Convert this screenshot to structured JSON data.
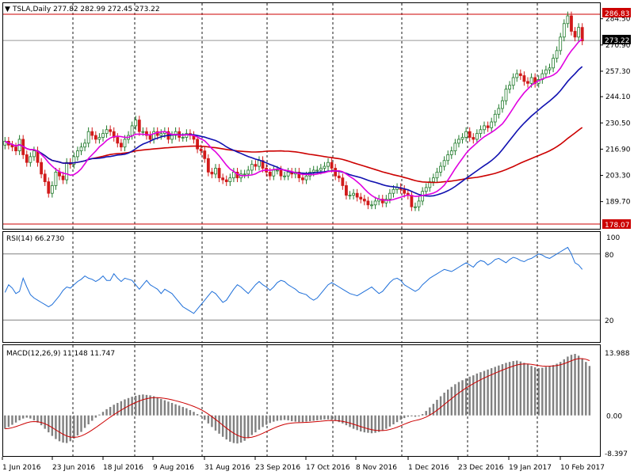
{
  "chart_data": [
    {
      "type": "candlestick",
      "symbol": "TSLA",
      "timeframe": "Daily",
      "header_text": "TSLA,Daily  277.82 282.99 272.45 273.22",
      "ohlc_last": {
        "open": 277.82,
        "high": 282.99,
        "low": 272.45,
        "close": 273.22
      },
      "ylim": [
        178.07,
        286.83
      ],
      "price_ticks": [
        284.5,
        270.9,
        257.3,
        244.1,
        230.5,
        216.9,
        203.3,
        189.7
      ],
      "price_tick_labels": [
        "284.50",
        "270.90",
        "257.30",
        "244.10",
        "230.50",
        "216.90",
        "203.30",
        "189.70"
      ],
      "high_label": "286.83",
      "low_label": "178.07",
      "current_label": "273.22",
      "x_labels": [
        "1 Jun 2016",
        "23 Jun 2016",
        "18 Jul 2016",
        "9 Aug 2016",
        "31 Aug 2016",
        "23 Sep 2016",
        "17 Oct 2016",
        "8 Nov 2016",
        "1 Dec 2016",
        "23 Dec 2016",
        "19 Jan 2017",
        "10 Feb 2017"
      ],
      "colors": {
        "up": "#1f7a2a",
        "down": "#d11a1a",
        "ma_fast": "#e000e0",
        "ma_mid": "#1010b0",
        "ma_slow": "#cc0000",
        "price_line": "#cc0000"
      },
      "close_series": [
        221,
        219,
        218,
        216,
        222,
        214,
        210,
        213,
        216,
        210,
        204,
        200,
        194,
        198,
        205,
        203,
        201,
        210,
        209,
        213,
        216,
        218,
        220,
        226,
        224,
        222,
        223,
        225,
        227,
        226,
        223,
        220,
        218,
        222,
        224,
        229,
        232,
        226,
        226,
        224,
        222,
        226,
        224,
        225,
        226,
        222,
        224,
        226,
        223,
        223,
        225,
        224,
        222,
        217,
        216,
        212,
        205,
        204,
        207,
        202,
        201,
        200,
        202,
        205,
        202,
        204,
        204,
        206,
        209,
        208,
        211,
        207,
        205,
        203,
        206,
        206,
        203,
        203,
        205,
        204,
        205,
        202,
        201,
        203,
        205,
        206,
        206,
        207,
        208,
        210,
        207,
        203,
        202,
        198,
        193,
        193,
        194,
        192,
        191,
        190,
        188,
        188,
        190,
        191,
        189,
        191,
        194,
        196,
        197,
        196,
        194,
        193,
        187,
        187,
        190,
        195,
        197,
        200,
        202,
        205,
        208,
        211,
        214,
        216,
        220,
        222,
        223,
        226,
        223,
        222,
        225,
        227,
        229,
        228,
        231,
        235,
        238,
        242,
        248,
        250,
        254,
        256,
        255,
        252,
        251,
        254,
        251,
        253,
        256,
        258,
        259,
        264,
        268,
        275,
        282,
        286,
        278,
        275,
        280,
        273
      ]
    },
    {
      "type": "line",
      "name": "RSI(14)",
      "label": "RSI(14) 66.2730",
      "value": 66.273,
      "ylim": [
        0,
        100
      ],
      "levels": [
        80,
        20
      ],
      "level_labels": [
        "80",
        "20"
      ],
      "top_label": "100",
      "color": "#1e6fd9",
      "values": [
        45,
        52,
        49,
        44,
        46,
        58,
        50,
        43,
        40,
        38,
        36,
        34,
        32,
        34,
        38,
        42,
        47,
        50,
        49,
        52,
        55,
        57,
        60,
        58,
        57,
        55,
        57,
        60,
        56,
        56,
        62,
        58,
        55,
        58,
        57,
        56,
        52,
        48,
        52,
        56,
        52,
        50,
        48,
        44,
        48,
        46,
        44,
        40,
        36,
        32,
        30,
        28,
        26,
        30,
        34,
        38,
        42,
        46,
        44,
        40,
        36,
        38,
        43,
        48,
        52,
        50,
        47,
        44,
        48,
        52,
        55,
        52,
        50,
        47,
        50,
        54,
        56,
        55,
        52,
        50,
        48,
        45,
        44,
        43,
        40,
        38,
        40,
        44,
        48,
        52,
        54,
        52,
        50,
        48,
        46,
        44,
        43,
        42,
        44,
        46,
        48,
        50,
        47,
        44,
        46,
        50,
        54,
        57,
        58,
        56,
        52,
        50,
        48,
        46,
        48,
        52,
        55,
        58,
        60,
        62,
        64,
        66,
        65,
        64,
        66,
        68,
        70,
        72,
        70,
        68,
        72,
        74,
        73,
        70,
        72,
        75,
        76,
        74,
        72,
        75,
        77,
        76,
        74,
        73,
        75,
        76,
        78,
        80,
        79,
        77,
        76,
        78,
        80,
        82,
        84,
        86,
        80,
        72,
        70,
        66
      ]
    },
    {
      "type": "bar",
      "name": "MACD(12,26,9)",
      "label": "MACD(12,26,9) 11.148 11.747",
      "macd_value": 11.148,
      "signal_value": 11.747,
      "ylim": [
        -8.397,
        13.988
      ],
      "tick_labels": [
        "13.988",
        "0.00",
        "-8.397"
      ],
      "colors": {
        "histogram": "#808080",
        "signal": "#cc0000"
      },
      "histogram": [
        -3.0,
        -2.6,
        -2.1,
        -1.6,
        -1.1,
        -0.7,
        -0.5,
        -0.7,
        -1.1,
        -1.6,
        -2.2,
        -3.0,
        -3.8,
        -4.6,
        -5.3,
        -5.8,
        -6.1,
        -6.2,
        -5.8,
        -5.2,
        -4.5,
        -3.7,
        -2.8,
        -2.0,
        -1.2,
        -0.5,
        0.2,
        0.8,
        1.4,
        1.9,
        2.4,
        2.8,
        3.2,
        3.6,
        3.9,
        4.2,
        4.4,
        4.6,
        4.7,
        4.6,
        4.5,
        4.3,
        4.0,
        3.7,
        3.4,
        3.1,
        2.8,
        2.5,
        2.2,
        1.9,
        1.6,
        1.2,
        0.8,
        0.3,
        -0.3,
        -1.0,
        -1.8,
        -2.6,
        -3.4,
        -4.1,
        -4.8,
        -5.4,
        -5.9,
        -6.2,
        -6.3,
        -6.1,
        -5.7,
        -5.1,
        -4.4,
        -3.8,
        -3.2,
        -2.6,
        -2.1,
        -1.7,
        -1.4,
        -1.2,
        -1.1,
        -1.0,
        -1.1,
        -1.3,
        -1.4,
        -1.5,
        -1.5,
        -1.4,
        -1.3,
        -1.2,
        -1.1,
        -1.0,
        -0.9,
        -0.9,
        -1.0,
        -1.2,
        -1.5,
        -1.8,
        -2.2,
        -2.6,
        -3.0,
        -3.3,
        -3.6,
        -3.8,
        -3.9,
        -4.0,
        -3.9,
        -3.7,
        -3.4,
        -3.0,
        -2.5,
        -2.0,
        -1.5,
        -1.0,
        -0.6,
        -0.3,
        -0.2,
        -0.3,
        -0.2,
        0.3,
        1.0,
        1.8,
        2.6,
        3.5,
        4.3,
        5.1,
        5.8,
        6.4,
        7.0,
        7.5,
        7.9,
        8.3,
        8.7,
        9.0,
        9.4,
        9.7,
        10.0,
        10.3,
        10.6,
        10.9,
        11.2,
        11.5,
        11.8,
        12.0,
        12.2,
        12.3,
        12.1,
        11.8,
        11.5,
        11.1,
        10.8,
        10.6,
        10.7,
        10.9,
        11.1,
        11.3,
        11.6,
        12.0,
        12.6,
        13.2,
        13.6,
        13.8,
        13.4,
        12.8,
        12.0,
        11.1
      ]
    }
  ]
}
